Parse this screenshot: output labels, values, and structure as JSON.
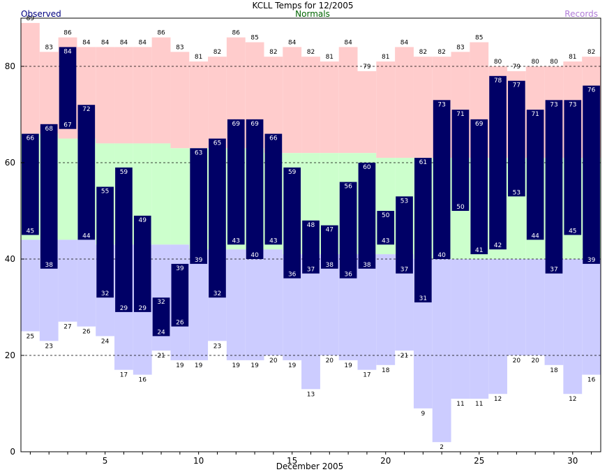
{
  "chart_data": {
    "type": "bar",
    "title": "KCLL Temps for 12/2005",
    "xlabel": "December 2005",
    "ylabel": "",
    "legend": {
      "observed": "Observed",
      "normals": "Normals",
      "records": "Records",
      "placement": "top"
    },
    "ylim": [
      0,
      90
    ],
    "xlim": [
      0.5,
      31.5
    ],
    "yticks": [
      0,
      20,
      40,
      60,
      80
    ],
    "xticks": [
      5,
      10,
      15,
      20,
      25,
      30
    ],
    "grid_dashed_at": [
      20,
      40,
      60,
      80
    ],
    "days": [
      1,
      2,
      3,
      4,
      5,
      6,
      7,
      8,
      9,
      10,
      11,
      12,
      13,
      14,
      15,
      16,
      17,
      18,
      19,
      20,
      21,
      22,
      23,
      24,
      25,
      26,
      27,
      28,
      29,
      30,
      31
    ],
    "series": [
      {
        "name": "Observed High",
        "values": [
          66,
          68,
          84,
          72,
          55,
          59,
          49,
          32,
          39,
          63,
          65,
          69,
          69,
          66,
          59,
          48,
          47,
          56,
          60,
          50,
          53,
          61,
          73,
          71,
          69,
          78,
          77,
          71,
          73,
          73,
          76
        ]
      },
      {
        "name": "Observed Low",
        "values": [
          45,
          38,
          67,
          44,
          32,
          29,
          29,
          24,
          26,
          39,
          32,
          43,
          40,
          43,
          36,
          37,
          38,
          36,
          38,
          43,
          37,
          31,
          40,
          50,
          41,
          42,
          53,
          44,
          37,
          45,
          39
        ]
      },
      {
        "name": "Normal High",
        "values": [
          66,
          66,
          65,
          65,
          64,
          64,
          64,
          64,
          63,
          63,
          63,
          63,
          63,
          62,
          62,
          62,
          62,
          62,
          62,
          61,
          61,
          61,
          61,
          61,
          61,
          61,
          61,
          61,
          61,
          61,
          61
        ]
      },
      {
        "name": "Normal Low",
        "values": [
          44,
          44,
          44,
          44,
          43,
          43,
          43,
          43,
          43,
          42,
          42,
          42,
          42,
          42,
          41,
          41,
          41,
          41,
          41,
          41,
          41,
          40,
          40,
          40,
          40,
          40,
          40,
          40,
          40,
          40,
          40
        ]
      },
      {
        "name": "Record High",
        "values": [
          89,
          83,
          86,
          84,
          84,
          84,
          84,
          86,
          83,
          81,
          82,
          86,
          85,
          82,
          84,
          82,
          81,
          84,
          79,
          81,
          84,
          82,
          82,
          83,
          85,
          80,
          79,
          80,
          80,
          81,
          82
        ]
      },
      {
        "name": "Record Low",
        "values": [
          25,
          23,
          27,
          26,
          24,
          17,
          16,
          21,
          19,
          19,
          23,
          19,
          19,
          20,
          19,
          13,
          20,
          19,
          17,
          18,
          21,
          9,
          2,
          11,
          11,
          12,
          20,
          20,
          18,
          12,
          16
        ]
      }
    ],
    "colors": {
      "record_band": "#ffcccc",
      "normal_band": "#ccffcc",
      "low_band": "#ccccff",
      "observed_bar": "#000066",
      "grid": "#000000"
    }
  }
}
